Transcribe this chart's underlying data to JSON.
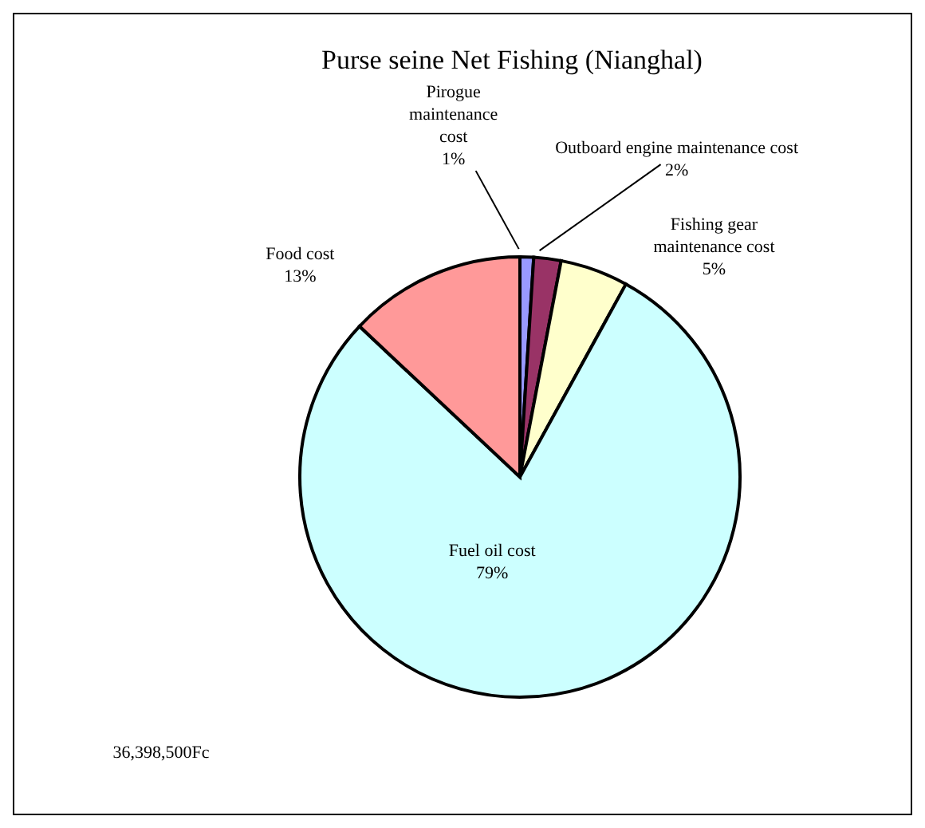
{
  "chart_data": {
    "type": "pie",
    "title": "Purse seine Net Fishing (Nianghal)",
    "categories": [
      "Pirogue maintenance cost",
      "Outboard engine maintenance cost",
      "Fishing gear maintenance cost",
      "Fuel oil cost",
      "Food cost"
    ],
    "values": [
      1,
      2,
      5,
      79,
      13
    ],
    "value_labels": [
      "1%",
      "2%",
      "5%",
      "79%",
      "13%"
    ],
    "colors": [
      "#9999ff",
      "#993366",
      "#ffffcc",
      "#ccffff",
      "#ff9999"
    ],
    "annotations": [
      "36,398,500Fc"
    ],
    "legend": false
  }
}
